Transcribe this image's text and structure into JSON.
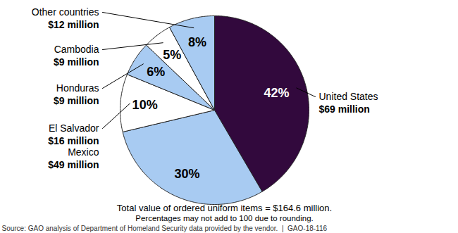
{
  "chart_data": {
    "type": "pie",
    "categories": [
      "United States",
      "Mexico",
      "El Salvador",
      "Honduras",
      "Cambodia",
      "Other countries"
    ],
    "values": [
      42,
      30,
      10,
      6,
      5,
      8
    ],
    "value_labels": [
      "42%",
      "30%",
      "10%",
      "6%",
      "5%",
      "8%"
    ],
    "amount_labels": [
      "$69 million",
      "$49 million",
      "$16 million",
      "$9 million",
      "$9 million",
      "$12 million"
    ],
    "colors": [
      "#32093d",
      "#a8cbf2",
      "#ffffff",
      "#a8cbf2",
      "#ffffff",
      "#a8cbf2"
    ],
    "data_labels": true,
    "annotations": [
      "Total value of ordered uniform items = $164.6 million.",
      "Percentages may not add to 100 due to rounding."
    ],
    "source": "Source: GAO analysis of Department of Homeland Security data provided by the vendor.  |  GAO-18-116"
  }
}
